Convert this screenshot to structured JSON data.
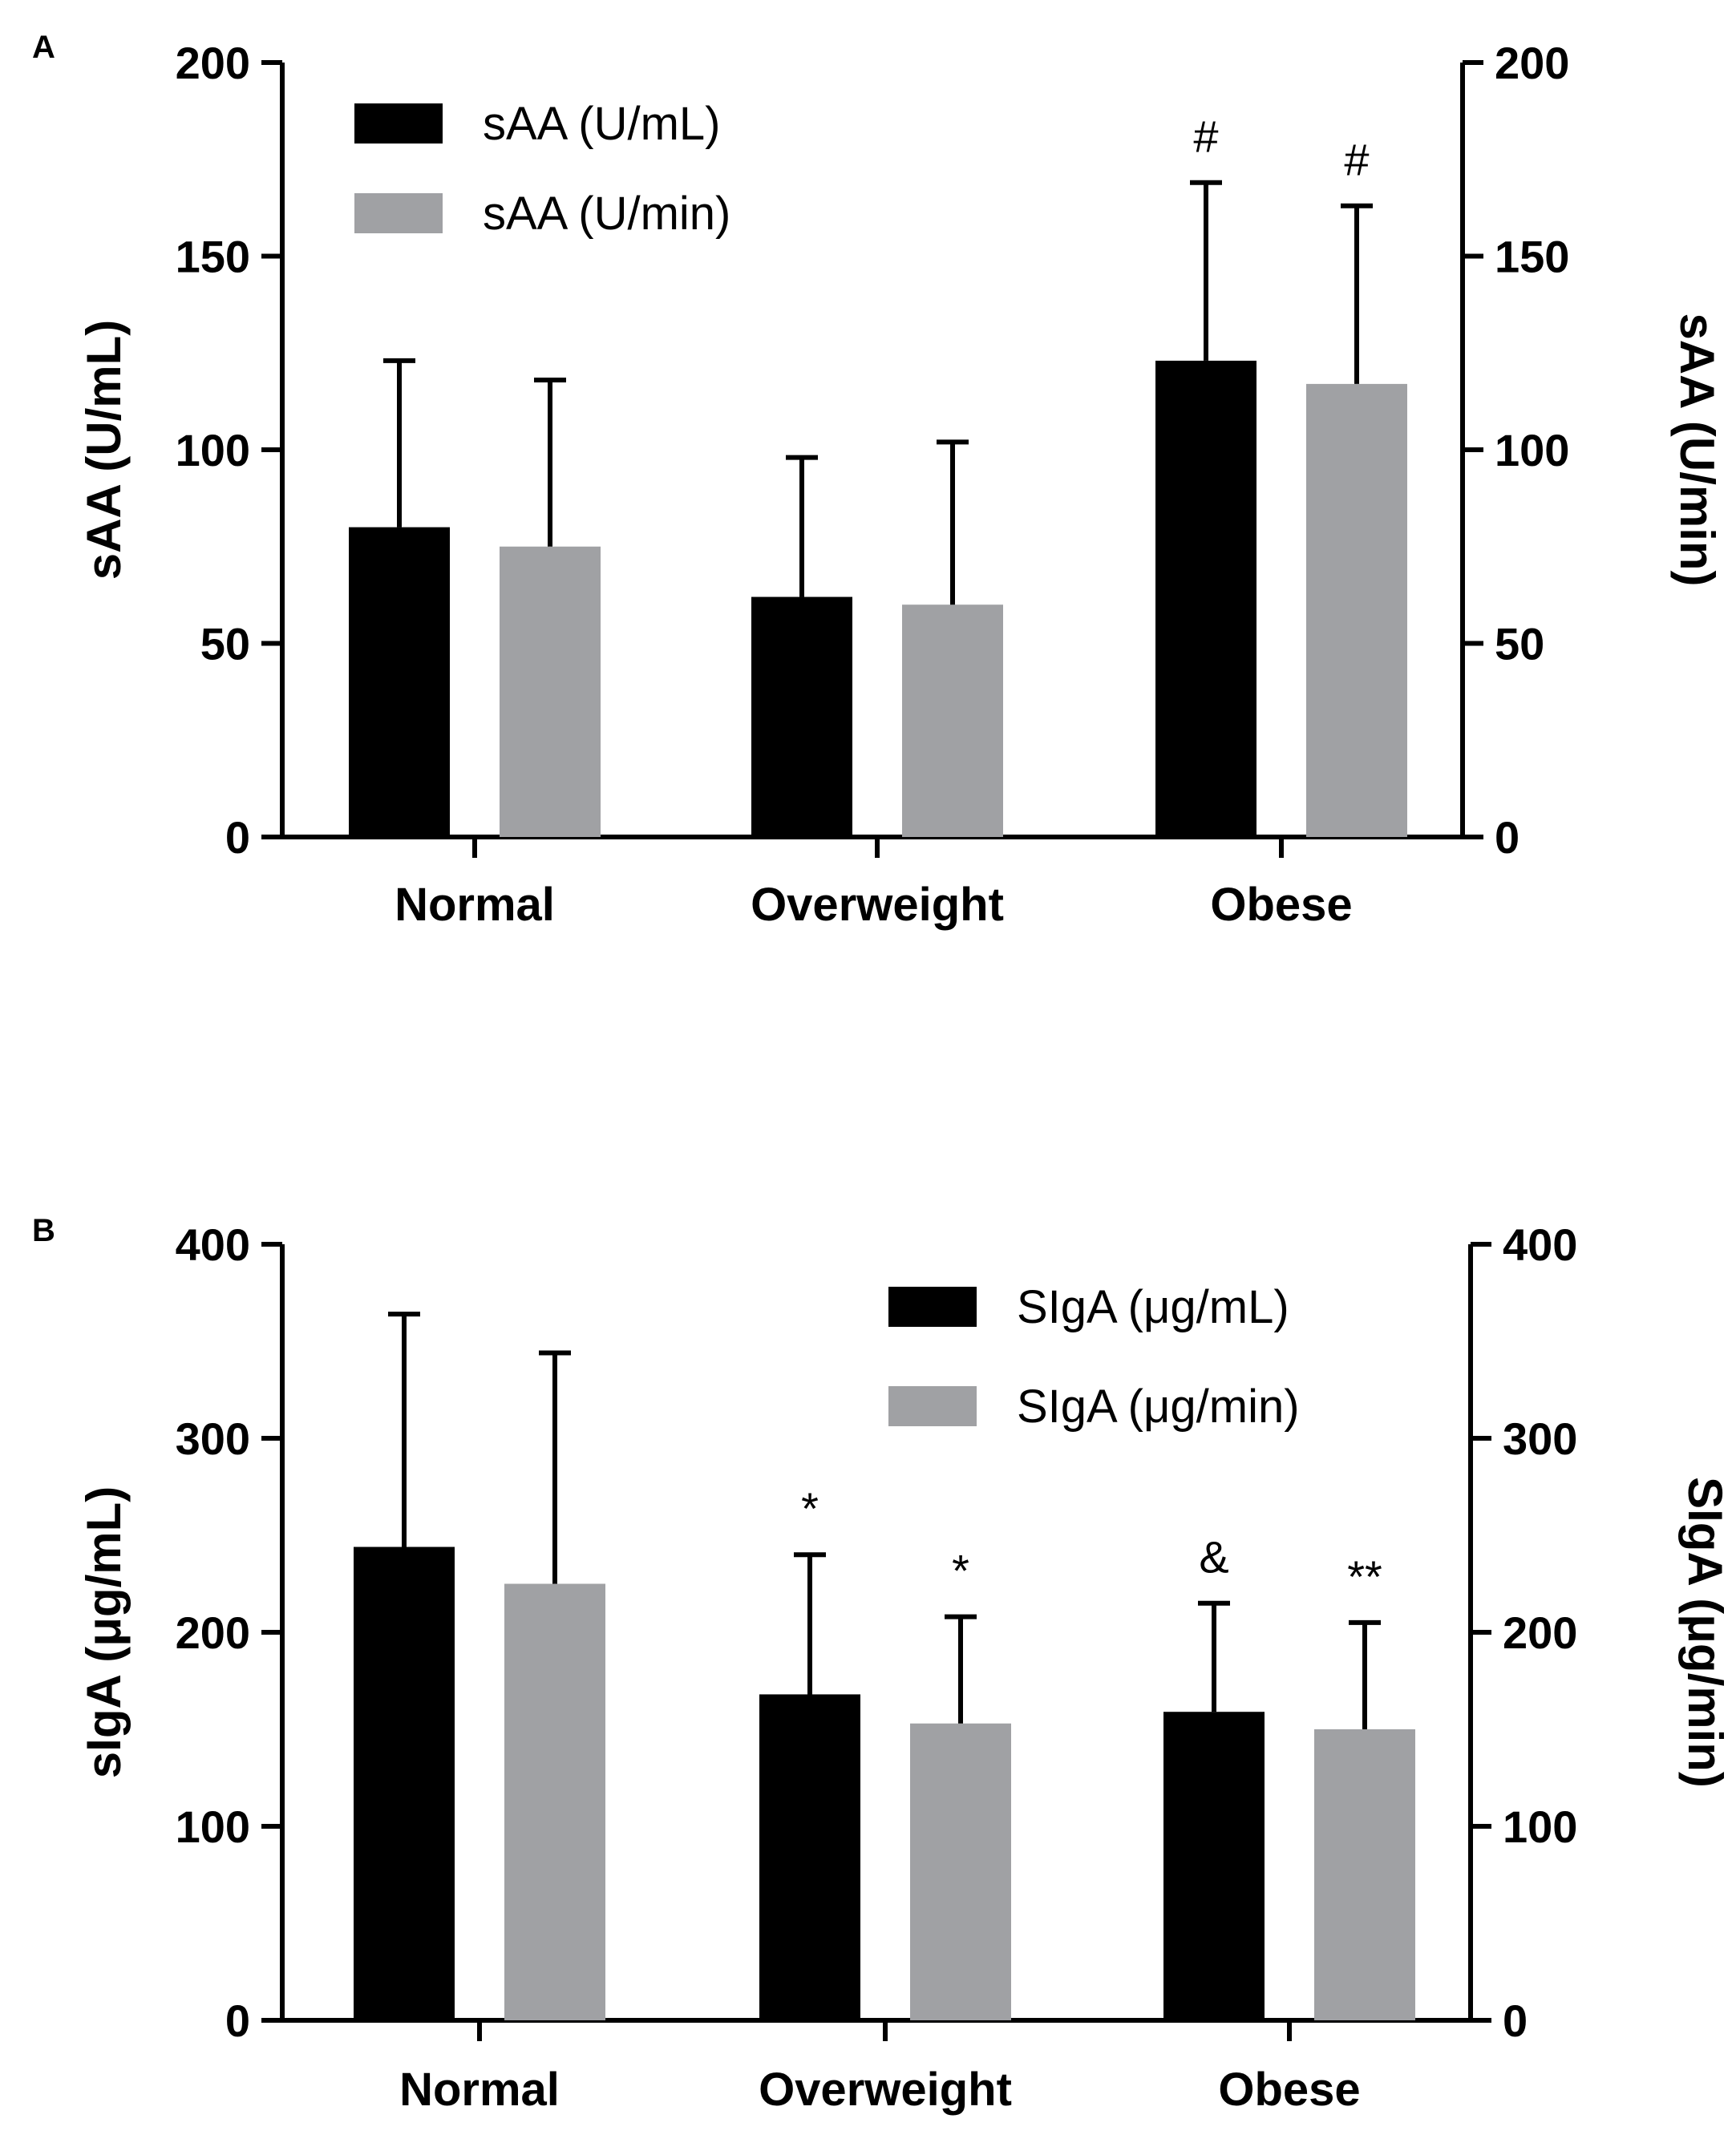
{
  "chart_data": [
    {
      "type": "bar",
      "panel_label": "A",
      "categories": [
        "Normal",
        "Overweight",
        "Obese"
      ],
      "series": [
        {
          "name": "sAA (U/mL)",
          "color": "#000000",
          "values": [
            80,
            62,
            123
          ],
          "errors": [
            43,
            36,
            46
          ],
          "annotations": [
            "",
            "",
            "#"
          ]
        },
        {
          "name": "sAA (U/min)",
          "color": "#a0a1a4",
          "values": [
            75,
            60,
            117
          ],
          "errors": [
            43,
            42,
            46
          ],
          "annotations": [
            "",
            "",
            "#"
          ]
        }
      ],
      "ylabel": "sAA (U/mL)",
      "ylabel_right": "sAA (U/min)",
      "ylim": [
        0,
        200
      ],
      "yticks": [
        0,
        50,
        100,
        150,
        200
      ],
      "ytick_labels": [
        "0",
        "50",
        "100",
        "150",
        "200"
      ],
      "ylim_right": [
        0,
        200
      ],
      "yticks_right": [
        0,
        50,
        100,
        150,
        200
      ],
      "ytick_labels_right": [
        "0",
        "50",
        "100",
        "150",
        "200"
      ],
      "legend_position": "top-left"
    },
    {
      "type": "bar",
      "panel_label": "B",
      "categories": [
        "Normal",
        "Overweight",
        "Obese"
      ],
      "series": [
        {
          "name": "SIgA (μg/mL)",
          "color": "#000000",
          "values": [
            244,
            168,
            159
          ],
          "errors": [
            120,
            72,
            56
          ],
          "annotations": [
            "",
            "*",
            "&"
          ]
        },
        {
          "name": "SIgA (μg/min)",
          "color": "#a0a1a4",
          "values": [
            225,
            153,
            150
          ],
          "errors": [
            119,
            55,
            55
          ],
          "annotations": [
            "",
            "*",
            "**"
          ]
        }
      ],
      "ylabel": "sIgA (μg/mL)",
      "ylabel_right": "SIgA (μg/min)",
      "ylim": [
        0,
        400
      ],
      "yticks": [
        0,
        100,
        200,
        300,
        400
      ],
      "ytick_labels": [
        "0",
        "100",
        "200",
        "300",
        "400"
      ],
      "ylim_right": [
        0,
        400
      ],
      "yticks_right": [
        0,
        100,
        200,
        300,
        400
      ],
      "ytick_labels_right": [
        "0",
        "100",
        "200",
        "300",
        "400"
      ],
      "legend_position": "top-right"
    }
  ]
}
